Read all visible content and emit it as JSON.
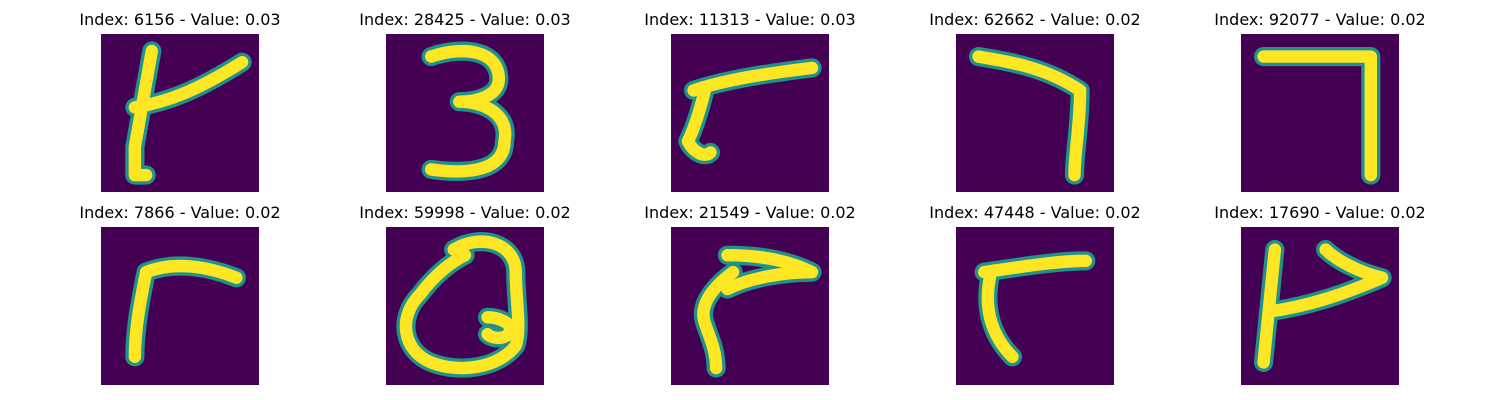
{
  "colors": {
    "background": "#440154",
    "stroke_mid": "#21918c",
    "stroke_high": "#fde725"
  },
  "panels": [
    {
      "title": "Index: 6156 - Value: 0.03",
      "depicts": "handwritten-glyph-t-like"
    },
    {
      "title": "Index: 28425 - Value: 0.03",
      "depicts": "handwritten-digit-3"
    },
    {
      "title": "Index: 11313 - Value: 0.03",
      "depicts": "handwritten-glyph-7-like"
    },
    {
      "title": "Index: 62662 - Value: 0.02",
      "depicts": "handwritten-digit-7"
    },
    {
      "title": "Index: 92077 - Value: 0.02",
      "depicts": "handwritten-digit-7"
    },
    {
      "title": "Index: 7866 - Value: 0.02",
      "depicts": "handwritten-glyph-r-like"
    },
    {
      "title": "Index: 59998 - Value: 0.02",
      "depicts": "handwritten-glyph-loop"
    },
    {
      "title": "Index: 21549 - Value: 0.02",
      "depicts": "handwritten-glyph-r-like"
    },
    {
      "title": "Index: 47448 - Value: 0.02",
      "depicts": "handwritten-glyph-r-like"
    },
    {
      "title": "Index: 17690 - Value: 0.02",
      "depicts": "handwritten-glyph-t-like"
    }
  ]
}
